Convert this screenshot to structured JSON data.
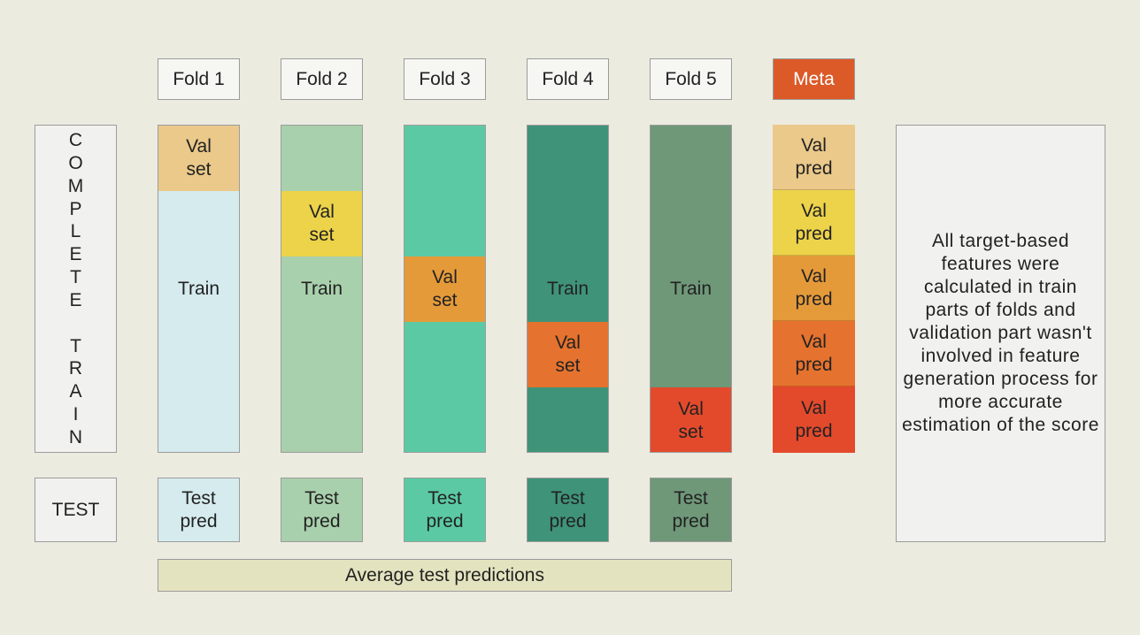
{
  "fold_headers": [
    "Fold 1",
    "Fold 2",
    "Fold 3",
    "Fold 4",
    "Fold 5"
  ],
  "meta_header": "Meta",
  "complete_train_label": "COMPLETE TRAIN",
  "test_label": "TEST",
  "train_label": "Train",
  "val_set_line1": "Val",
  "val_set_line2": "set",
  "val_pred_line1": "Val",
  "val_pred_line2": "pred",
  "test_pred_line1": "Test",
  "test_pred_line2": "pred",
  "average_label": "Average test predictions",
  "note_text": "All target-based features were calculated in train parts of folds and validation part wasn't involved in feature generation process for more accurate estimation of the score",
  "colors": {
    "meta_header": "#db5a28",
    "average_bar": "#e4e3bf",
    "fold_train": [
      "#d5ebee",
      "#a9d0ac",
      "#5bcaa4",
      "#3f9379",
      "#6f9879"
    ],
    "val_levels": [
      "#eac98a",
      "#ecd34a",
      "#e59a3a",
      "#e5722e",
      "#e34a2c"
    ]
  }
}
